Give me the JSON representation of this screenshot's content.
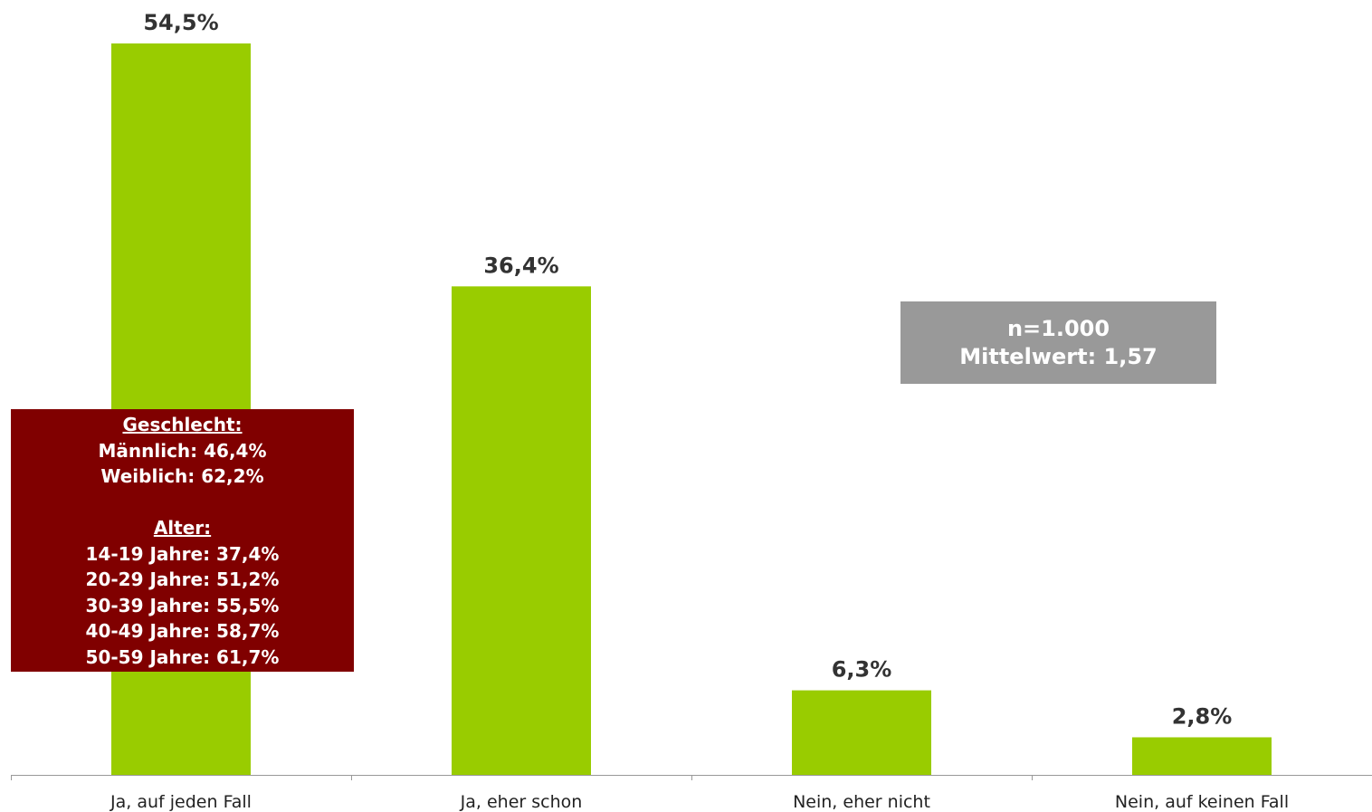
{
  "chart_data": {
    "type": "bar",
    "categories": [
      "Ja, auf jeden Fall",
      "Ja, eher schon",
      "Nein, eher nicht",
      "Nein, auf keinen Fall"
    ],
    "values": [
      54.5,
      36.4,
      6.3,
      2.8
    ],
    "value_labels": [
      "54,5%",
      "36,4%",
      "6,3%",
      "2,8%"
    ],
    "unit": "%",
    "bar_color": "#99cc00",
    "ylim": [
      0,
      54.5
    ],
    "grid": false,
    "legend": "none"
  },
  "gender_box": {
    "color": "#800000",
    "heading_gender": "Geschlecht:",
    "male": "Männlich: 46,4%",
    "female": "Weiblich: 62,2%",
    "heading_age": "Alter:",
    "age_14_19": "14-19 Jahre: 37,4%",
    "age_20_29": "20-29 Jahre: 51,2%",
    "age_30_39": "30-39 Jahre: 55,5%",
    "age_40_49": "40-49 Jahre: 58,7%",
    "age_50_59": "50-59 Jahre: 61,7%"
  },
  "summary_box": {
    "color": "#999999",
    "sample": "n=1.000",
    "mean": "Mittelwert: 1,57"
  }
}
